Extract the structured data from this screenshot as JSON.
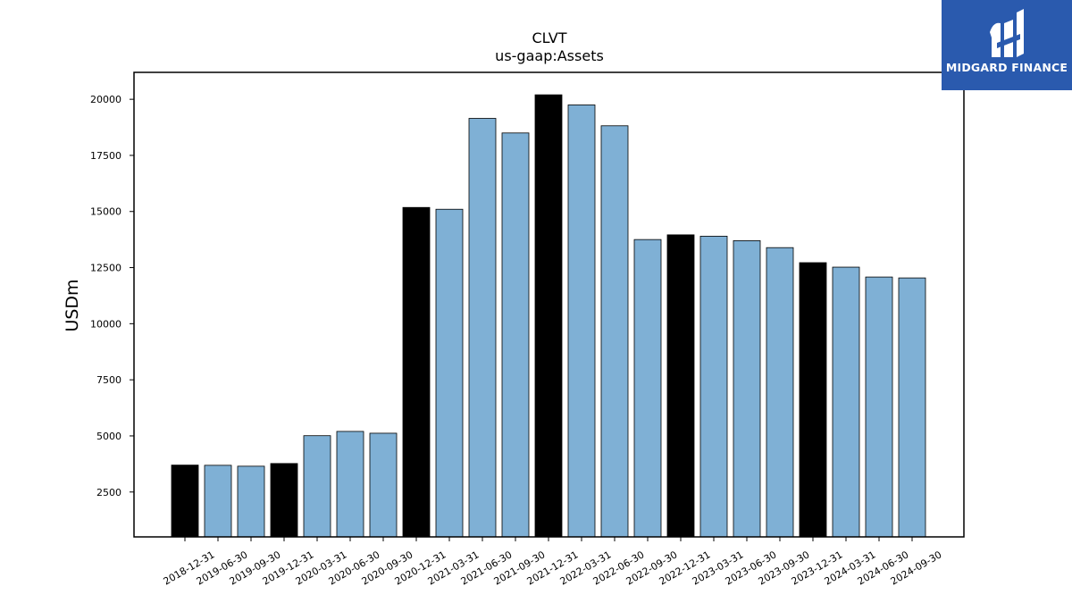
{
  "chart_data": {
    "type": "bar",
    "title": "CLVT",
    "subtitle": "us-gaap:Assets",
    "xlabel": "",
    "ylabel": "USDm",
    "categories": [
      "2018-12-31",
      "2019-06-30",
      "2019-09-30",
      "2019-12-31",
      "2020-03-31",
      "2020-06-30",
      "2020-09-30",
      "2020-12-31",
      "2021-03-31",
      "2021-06-30",
      "2021-09-30",
      "2021-12-31",
      "2022-03-31",
      "2022-06-30",
      "2022-09-30",
      "2022-12-31",
      "2023-03-31",
      "2023-06-30",
      "2023-09-30",
      "2023-12-31",
      "2024-03-31",
      "2024-06-30",
      "2024-09-30"
    ],
    "values": [
      3700,
      3690,
      3650,
      3770,
      5010,
      5200,
      5120,
      15180,
      15100,
      19150,
      18500,
      20200,
      19750,
      18820,
      13750,
      13960,
      13900,
      13700,
      13390,
      12720,
      12520,
      12080,
      12040
    ],
    "year_end": [
      true,
      false,
      false,
      true,
      false,
      false,
      false,
      true,
      false,
      false,
      false,
      true,
      false,
      false,
      false,
      true,
      false,
      false,
      false,
      true,
      false,
      false,
      false
    ],
    "ylim": [
      500,
      21200
    ],
    "yticks": [
      2500,
      5000,
      7500,
      10000,
      12500,
      15000,
      17500,
      20000
    ],
    "grid": false,
    "colors": {
      "year_end_bar": "#000000",
      "quarter_bar": "#7fb0d5",
      "bar_edge": "#000000"
    }
  },
  "logo": {
    "text": "MIDGARD FINANCE",
    "icon": "midgard-logo-icon",
    "background": "#2a5aae"
  }
}
